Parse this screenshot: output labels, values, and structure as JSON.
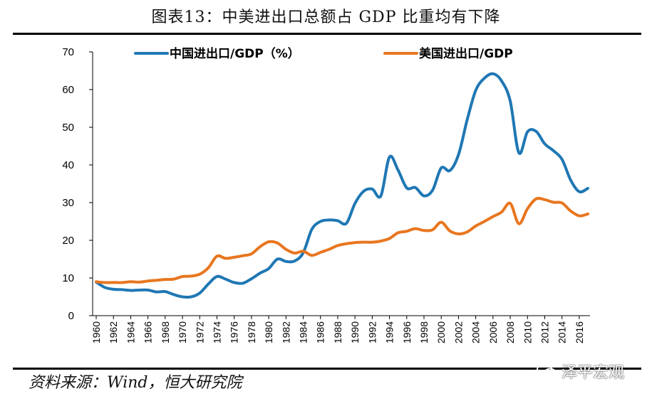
{
  "title": "图表13：中美进出口总额占 GDP 比重均有下降",
  "source": "资料来源：Wind，恒大研究院",
  "watermark": "泽平宏观",
  "colors": {
    "china": "#1f77b4",
    "us": "#e8761f"
  },
  "chart_data": {
    "type": "line",
    "title": "图表13：中美进出口总额占 GDP 比重均有下降",
    "xlabel": "",
    "ylabel": "",
    "ylim": [
      0,
      70
    ],
    "yticks": [
      0,
      10,
      20,
      30,
      40,
      50,
      60,
      70
    ],
    "xlim": [
      1960,
      2017
    ],
    "xticks": [
      "1960",
      "1962",
      "1964",
      "1966",
      "1968",
      "1970",
      "1972",
      "1974",
      "1976",
      "1978",
      "1980",
      "1982",
      "1984",
      "1986",
      "1988",
      "1990",
      "1992",
      "1994",
      "1996",
      "1998",
      "2000",
      "2002",
      "2004",
      "2006",
      "2008",
      "2010",
      "2012",
      "2014",
      "2016"
    ],
    "legend_position": "top",
    "grid": false,
    "x": [
      1960,
      1961,
      1962,
      1963,
      1964,
      1965,
      1966,
      1967,
      1968,
      1969,
      1970,
      1971,
      1972,
      1973,
      1974,
      1975,
      1976,
      1977,
      1978,
      1979,
      1980,
      1981,
      1982,
      1983,
      1984,
      1985,
      1986,
      1987,
      1988,
      1989,
      1990,
      1991,
      1992,
      1993,
      1994,
      1995,
      1996,
      1997,
      1998,
      1999,
      2000,
      2001,
      2002,
      2003,
      2004,
      2005,
      2006,
      2007,
      2008,
      2009,
      2010,
      2011,
      2012,
      2013,
      2014,
      2015,
      2016,
      2017
    ],
    "series": [
      {
        "name": "中国进出口/GDP（%）",
        "color": "#1f77b4",
        "values": [
          8.9,
          7.5,
          7.0,
          6.9,
          6.7,
          6.8,
          6.8,
          6.3,
          6.4,
          5.6,
          5.0,
          5.0,
          6.0,
          8.4,
          10.4,
          9.7,
          8.8,
          8.6,
          9.8,
          11.3,
          12.5,
          15.0,
          14.4,
          14.5,
          16.7,
          22.9,
          25.0,
          25.4,
          25.2,
          24.5,
          29.8,
          33.0,
          33.6,
          31.8,
          42.1,
          38.6,
          33.9,
          34.0,
          31.8,
          33.3,
          39.2,
          38.5,
          42.7,
          51.9,
          59.8,
          63.0,
          64.2,
          62.3,
          56.9,
          43.2,
          48.8,
          48.9,
          45.6,
          43.8,
          41.5,
          36.0,
          32.9,
          33.8
        ]
      },
      {
        "name": "美国进出口/GDP",
        "color": "#e8761f",
        "values": [
          9.0,
          8.8,
          8.8,
          8.8,
          9.0,
          8.9,
          9.2,
          9.4,
          9.6,
          9.7,
          10.4,
          10.5,
          11.0,
          12.7,
          15.8,
          15.2,
          15.5,
          15.9,
          16.4,
          18.3,
          19.6,
          19.3,
          17.6,
          16.6,
          17.1,
          16.0,
          16.8,
          17.6,
          18.6,
          19.1,
          19.4,
          19.5,
          19.5,
          19.8,
          20.5,
          22.0,
          22.4,
          23.1,
          22.6,
          22.8,
          24.8,
          22.5,
          21.7,
          22.2,
          23.8,
          25.0,
          26.3,
          27.5,
          29.8,
          24.4,
          28.4,
          31.0,
          30.8,
          30.1,
          29.9,
          27.8,
          26.5,
          27.0
        ]
      }
    ]
  }
}
